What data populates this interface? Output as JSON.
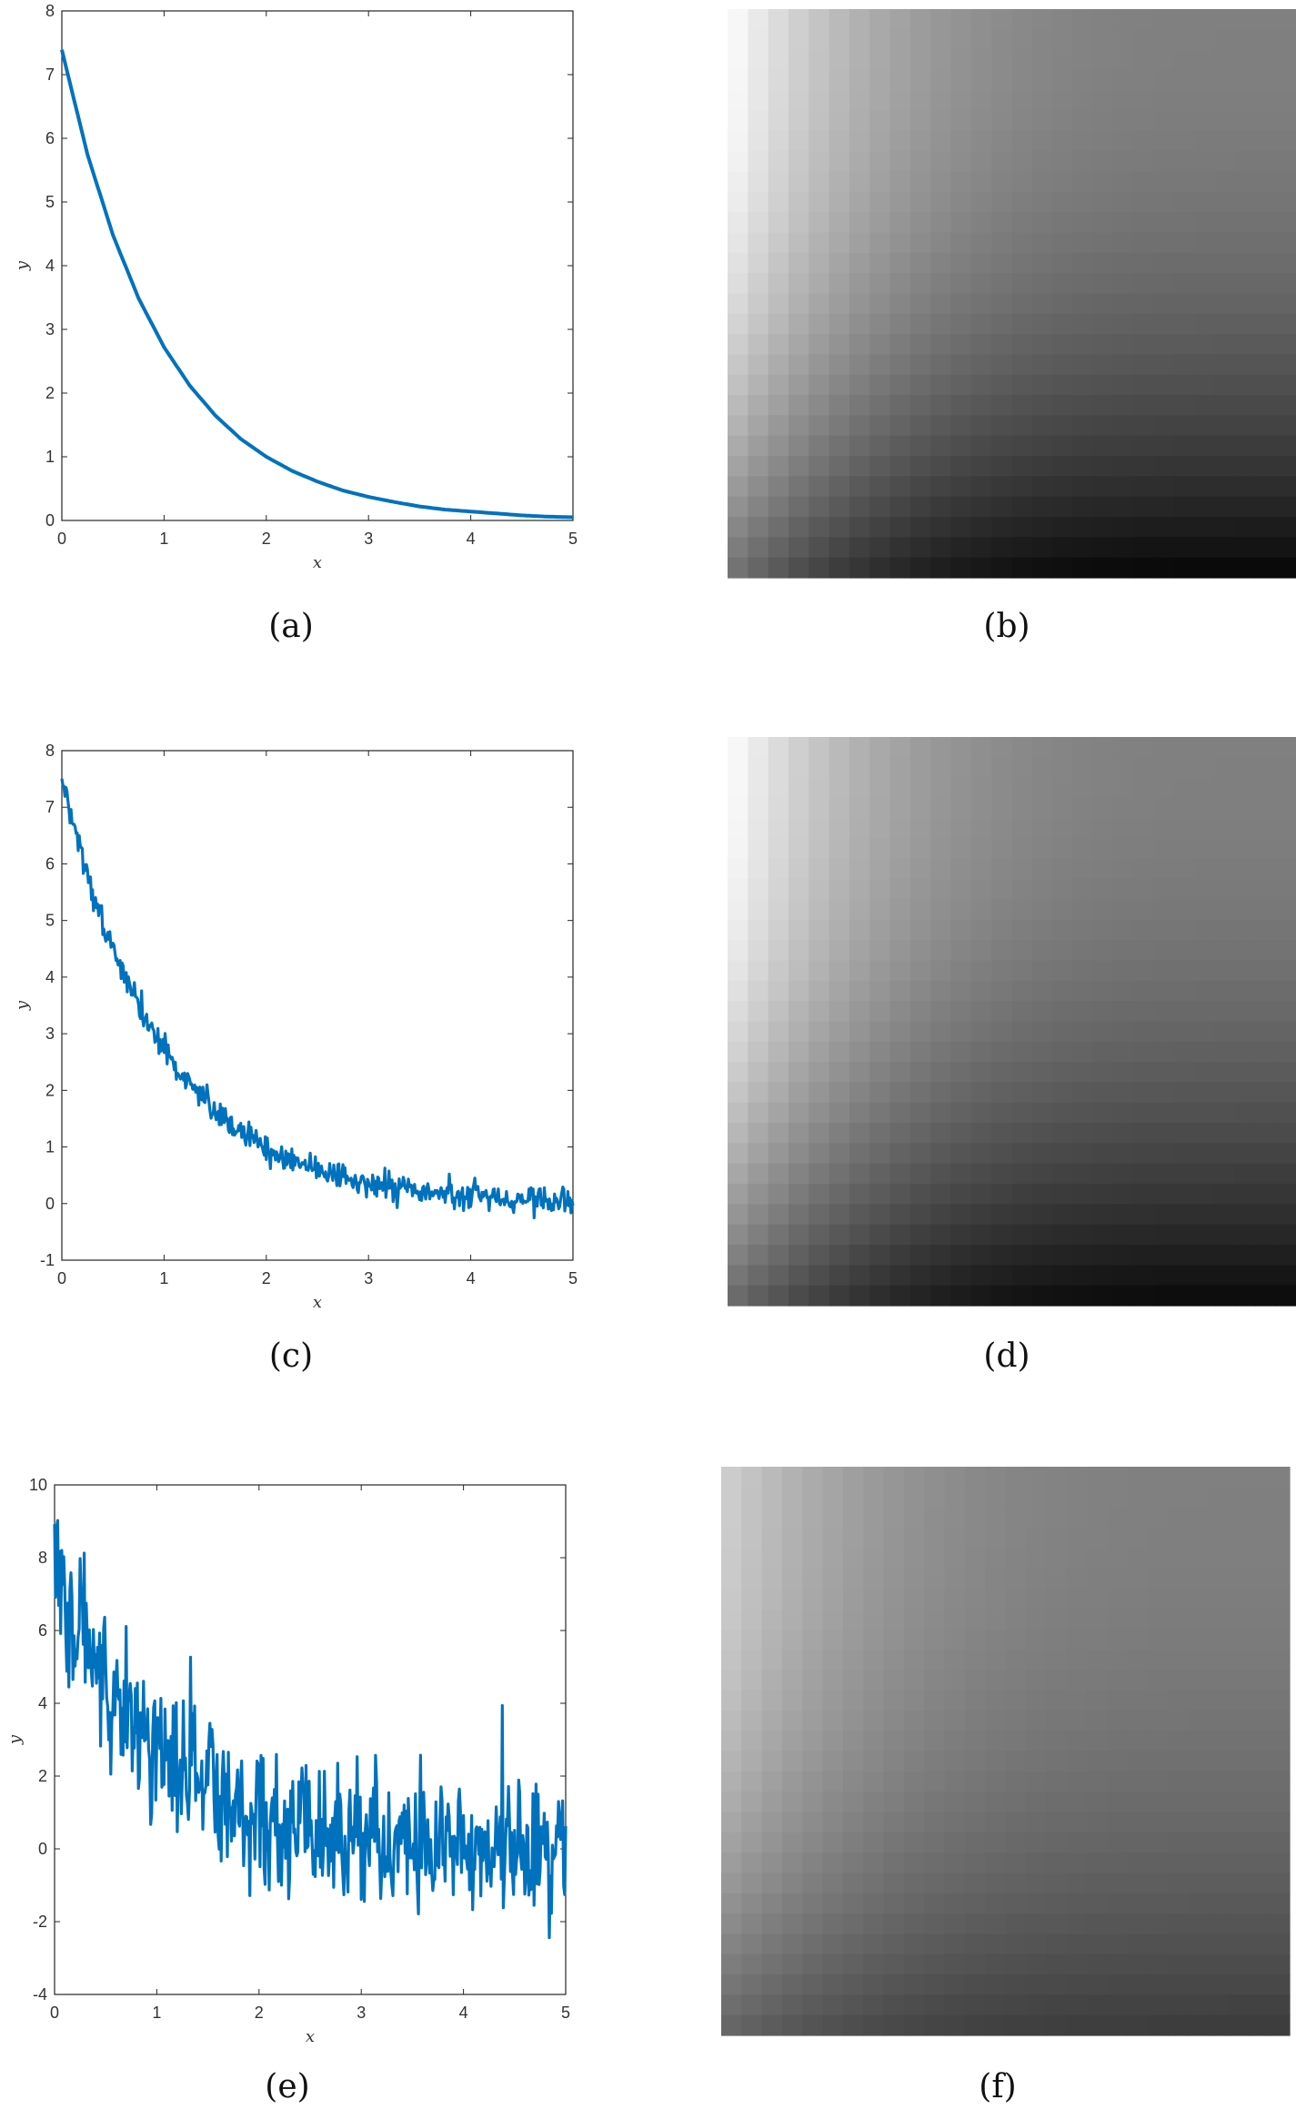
{
  "captions": {
    "a": "(a)",
    "b": "(b)",
    "c": "(c)",
    "d": "(d)",
    "e": "(e)",
    "f": "(f)"
  },
  "chart_data": [
    {
      "id": "a",
      "type": "line",
      "xlabel": "x",
      "ylabel": "y",
      "xlim": [
        0,
        5
      ],
      "ylim": [
        0,
        8
      ],
      "xticks": [
        0,
        1,
        2,
        3,
        4,
        5
      ],
      "yticks": [
        0,
        1,
        2,
        3,
        4,
        5,
        6,
        7,
        8
      ],
      "grid": false,
      "series": [
        {
          "color": "#0072BD",
          "noise": 0,
          "x": [
            0,
            0.25,
            0.5,
            0.75,
            1,
            1.25,
            1.5,
            1.75,
            2,
            2.25,
            2.5,
            2.75,
            3,
            3.25,
            3.5,
            3.75,
            4,
            4.25,
            4.5,
            4.75,
            5
          ],
          "y": [
            7.39,
            5.75,
            4.48,
            3.49,
            2.72,
            2.12,
            1.65,
            1.28,
            1.0,
            0.78,
            0.61,
            0.47,
            0.37,
            0.29,
            0.22,
            0.17,
            0.14,
            0.11,
            0.08,
            0.06,
            0.05
          ]
        }
      ]
    },
    {
      "id": "b",
      "type": "heatmap",
      "colormap": "gray",
      "rows": 28,
      "cols": 28,
      "level_range": [
        0.04,
        0.97
      ],
      "top_left_level": 0.97,
      "top_right_level": 0.5,
      "bottom_left_level": 0.45,
      "bottom_right_level": 0.04
    },
    {
      "id": "c",
      "type": "line",
      "xlabel": "x",
      "ylabel": "y",
      "xlim": [
        0,
        5
      ],
      "ylim": [
        -1,
        8
      ],
      "xticks": [
        0,
        1,
        2,
        3,
        4,
        5
      ],
      "yticks": [
        -1,
        0,
        1,
        2,
        3,
        4,
        5,
        6,
        7,
        8
      ],
      "grid": false,
      "series": [
        {
          "color": "#0072BD",
          "noise": 0.12,
          "x": [
            0,
            0.25,
            0.5,
            0.75,
            1,
            1.25,
            1.5,
            1.75,
            2,
            2.25,
            2.5,
            2.75,
            3,
            3.25,
            3.5,
            3.75,
            4,
            4.25,
            4.5,
            4.75,
            5
          ],
          "y": [
            7.39,
            5.75,
            4.48,
            3.49,
            2.72,
            2.12,
            1.65,
            1.28,
            1.0,
            0.78,
            0.61,
            0.47,
            0.37,
            0.29,
            0.22,
            0.17,
            0.14,
            0.11,
            0.08,
            0.06,
            0.05
          ]
        }
      ]
    },
    {
      "id": "d",
      "type": "heatmap",
      "colormap": "gray",
      "rows": 28,
      "cols": 28,
      "level_range": [
        0.05,
        0.97
      ],
      "top_left_level": 0.97,
      "top_right_level": 0.5,
      "bottom_left_level": 0.42,
      "bottom_right_level": 0.05
    },
    {
      "id": "e",
      "type": "line",
      "xlabel": "x",
      "ylabel": "y",
      "xlim": [
        0,
        5
      ],
      "ylim": [
        -4,
        10
      ],
      "xticks": [
        0,
        1,
        2,
        3,
        4,
        5
      ],
      "yticks": [
        -4,
        -2,
        0,
        2,
        4,
        6,
        8,
        10
      ],
      "grid": false,
      "series": [
        {
          "color": "#0072BD",
          "noise": 1.0,
          "x": [
            0,
            0.25,
            0.5,
            0.75,
            1,
            1.25,
            1.5,
            1.75,
            2,
            2.25,
            2.5,
            2.75,
            3,
            3.25,
            3.5,
            3.75,
            4,
            4.25,
            4.5,
            4.75,
            5
          ],
          "y": [
            7.39,
            5.75,
            4.48,
            3.49,
            2.72,
            2.12,
            1.65,
            1.28,
            1.0,
            0.78,
            0.61,
            0.47,
            0.37,
            0.29,
            0.22,
            0.17,
            0.14,
            0.11,
            0.08,
            0.06,
            0.05
          ]
        }
      ]
    },
    {
      "id": "f",
      "type": "heatmap",
      "colormap": "gray",
      "rows": 28,
      "cols": 28,
      "level_range": [
        0.2,
        0.8
      ],
      "top_left_level": 0.8,
      "top_right_level": 0.5,
      "bottom_left_level": 0.4,
      "bottom_right_level": 0.24
    }
  ]
}
